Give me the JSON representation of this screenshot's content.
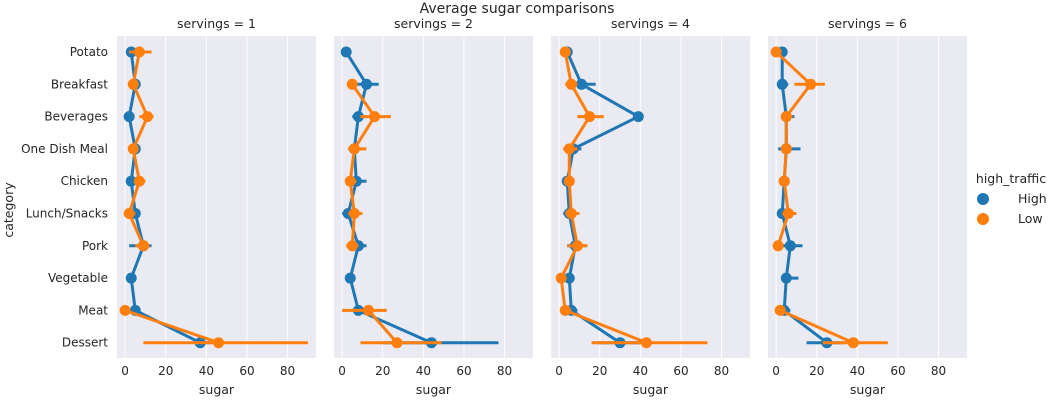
{
  "chart_data": {
    "type": "pointplot",
    "title": "Average sugar comparisons",
    "xlabel": "sugar",
    "ylabel": "category",
    "xlim": [
      -4,
      94
    ],
    "xticks": [
      0,
      20,
      40,
      60,
      80
    ],
    "grid": true,
    "legend": {
      "title": "high_traffic",
      "placement": "right",
      "entries": [
        "High",
        "Low"
      ]
    },
    "colors": {
      "High": "#1f77b4",
      "Low": "#ff7f0e",
      "panel_bg": "#eaeaf2",
      "grid": "#ffffff"
    },
    "categories": [
      "Potato",
      "Breakfast",
      "Beverages",
      "One Dish Meal",
      "Chicken",
      "Lunch/Snacks",
      "Pork",
      "Vegetable",
      "Meat",
      "Dessert"
    ],
    "panels": [
      {
        "title": "servings = 1",
        "series": [
          {
            "name": "High",
            "values": [
              3,
              5,
              2,
              5,
              3,
              5,
              9,
              3,
              5,
              37
            ],
            "ci": [
              [
                2,
                5
              ],
              [
                4,
                6
              ],
              [
                1,
                3
              ],
              [
                3,
                7
              ],
              [
                2,
                5
              ],
              [
                3,
                7
              ],
              [
                2,
                13
              ],
              [
                2,
                5
              ],
              [
                3,
                7
              ],
              [
                34,
                42
              ]
            ]
          },
          {
            "name": "Low",
            "values": [
              7,
              4,
              11,
              4,
              7,
              2,
              9,
              null,
              0,
              46
            ],
            "ci": [
              [
                2,
                13
              ],
              [
                3,
                6
              ],
              [
                7,
                14
              ],
              [
                2,
                6
              ],
              [
                5,
                10
              ],
              [
                0,
                5
              ],
              [
                5,
                12
              ],
              null,
              [
                0,
                1
              ],
              [
                9,
                90
              ]
            ]
          }
        ]
      },
      {
        "title": "servings = 2",
        "series": [
          {
            "name": "High",
            "values": [
              2,
              12,
              8,
              6,
              7,
              3,
              8,
              4,
              8,
              44
            ],
            "ci": [
              [
                1,
                3
              ],
              [
                7,
                18
              ],
              [
                5,
                12
              ],
              [
                3,
                10
              ],
              [
                5,
                12
              ],
              [
                0,
                6
              ],
              [
                4,
                12
              ],
              [
                2,
                6
              ],
              [
                5,
                11
              ],
              [
                20,
                77
              ]
            ]
          },
          {
            "name": "Low",
            "values": [
              null,
              5,
              16,
              6,
              4,
              6,
              5,
              null,
              13,
              27
            ],
            "ci": null,
            "ci_low": [
              null,
              [
                4,
                7
              ],
              [
                9,
                24
              ],
              [
                3,
                12
              ],
              [
                2,
                7
              ],
              [
                3,
                10
              ],
              [
                2,
                8
              ],
              null,
              [
                0,
                22
              ],
              [
                9,
                49
              ]
            ]
          }
        ]
      },
      {
        "title": "servings = 4",
        "series": [
          {
            "name": "High",
            "values": [
              4,
              11,
              39,
              7,
              4,
              5,
              8,
              5,
              6,
              30
            ],
            "ci": [
              [
                2,
                6
              ],
              [
                6,
                18
              ],
              [
                37,
                41
              ],
              [
                3,
                11
              ],
              [
                3,
                6
              ],
              [
                2,
                8
              ],
              [
                4,
                13
              ],
              [
                4,
                6
              ],
              [
                3,
                9
              ],
              [
                19,
                41
              ]
            ]
          },
          {
            "name": "Low",
            "values": [
              3,
              6,
              15,
              5,
              5,
              6,
              9,
              1,
              3,
              43
            ],
            "ci": [
              [
                2,
                5
              ],
              [
                3,
                9
              ],
              [
                9,
                22
              ],
              [
                2,
                9
              ],
              [
                3,
                7
              ],
              [
                3,
                10
              ],
              [
                4,
                14
              ],
              [
                0,
                2
              ],
              [
                1,
                6
              ],
              [
                16,
                73
              ]
            ]
          }
        ]
      },
      {
        "title": "servings = 6",
        "series": [
          {
            "name": "High",
            "values": [
              3,
              3,
              5,
              5,
              4,
              3,
              7,
              5,
              4,
              25
            ],
            "ci": [
              [
                2,
                4
              ],
              [
                1,
                6
              ],
              [
                3,
                9
              ],
              [
                1,
                12
              ],
              [
                3,
                6
              ],
              [
                1,
                6
              ],
              [
                3,
                13
              ],
              [
                3,
                11
              ],
              [
                2,
                7
              ],
              [
                15,
                33
              ]
            ]
          },
          {
            "name": "Low",
            "values": [
              0,
              17,
              5,
              5,
              4,
              6,
              1,
              null,
              2,
              38
            ],
            "ci": [
              [
                -1,
                2
              ],
              [
                9,
                24
              ],
              [
                3,
                8
              ],
              [
                3,
                7
              ],
              [
                3,
                5
              ],
              [
                3,
                10
              ],
              [
                0,
                3
              ],
              null,
              [
                0,
                4
              ],
              [
                23,
                55
              ]
            ]
          }
        ]
      }
    ]
  }
}
